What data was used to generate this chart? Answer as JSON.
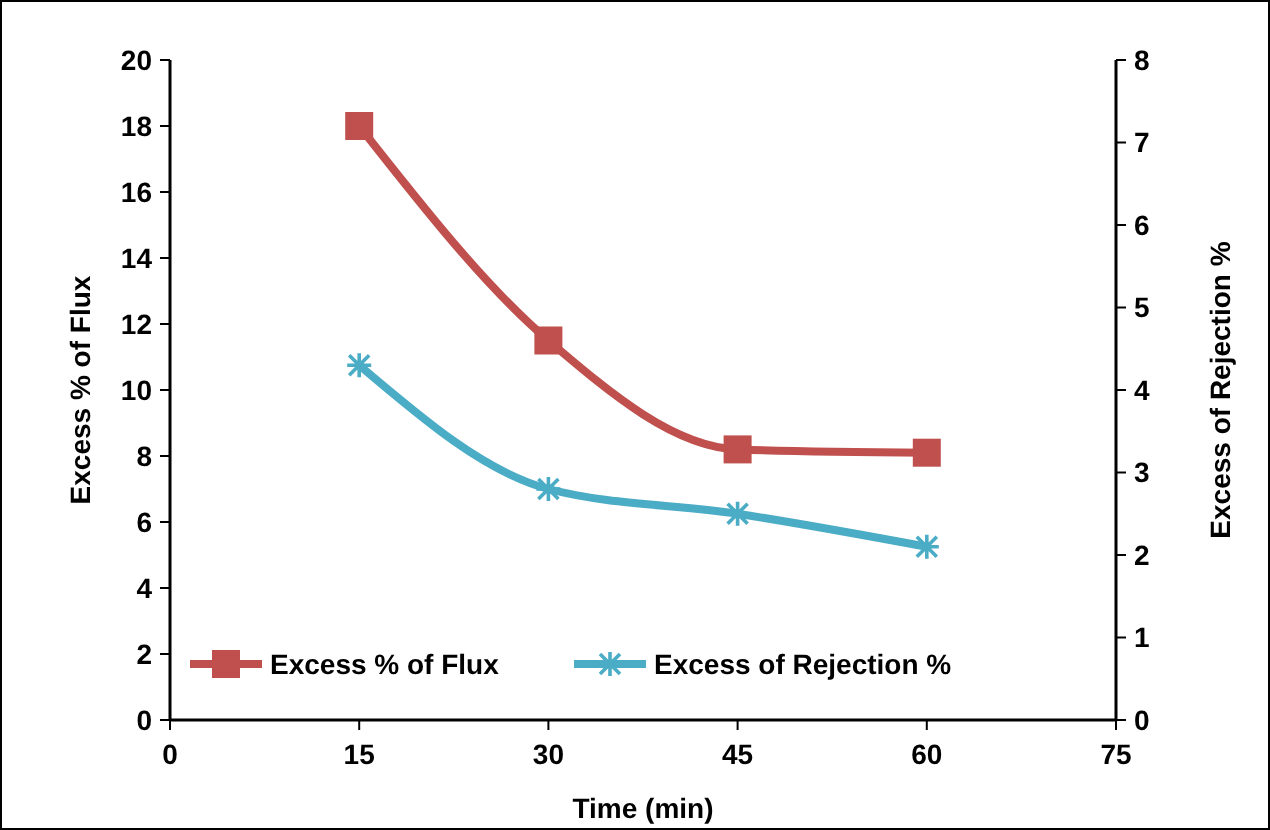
{
  "chart_data": {
    "type": "line",
    "xlabel": "Time (min)",
    "ylabel": "Excess % of Flux",
    "y2label": "Excess of Rejection %",
    "x": [
      15,
      30,
      45,
      60
    ],
    "series": [
      {
        "name": "Excess % of Flux",
        "color": "#c0504d",
        "values": [
          18.0,
          11.5,
          8.2,
          8.1
        ],
        "marker": "square"
      },
      {
        "name": "Excess of Rejection %",
        "color": "#4bacc6",
        "values": [
          4.3,
          2.8,
          2.5,
          2.1
        ],
        "marker": "cross",
        "axis": "y2"
      }
    ],
    "xlim": [
      0,
      75
    ],
    "xticks": [
      0,
      15,
      30,
      45,
      60,
      75
    ],
    "ylim": [
      0,
      20
    ],
    "yticks": [
      0,
      2,
      4,
      6,
      8,
      10,
      12,
      14,
      16,
      18,
      20
    ],
    "y2lim": [
      0,
      8
    ],
    "y2ticks": [
      0,
      1,
      2,
      3,
      4,
      5,
      6,
      7,
      8
    ],
    "legend": "bottom left",
    "grid": false,
    "line_style": "solid"
  }
}
